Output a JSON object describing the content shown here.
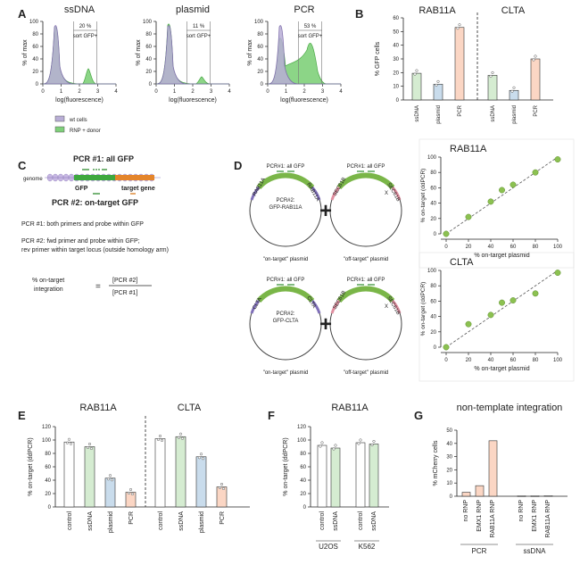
{
  "colors": {
    "wt": "#b9aed6",
    "rnp": "#7fd07a",
    "ssdna": "#d5ecd1",
    "plasmid": "#c9dcec",
    "pcr": "#fbd6c4",
    "point": "#8cc151",
    "primer": "#3a9a3a",
    "gene": "#e4852b",
    "gfp_green": "#2e8b2e",
    "pcr2_orange": "#d97a1c"
  },
  "panelA": {
    "letter": "A",
    "legend": {
      "wt": "wt cells",
      "rnp": "RNP + donor"
    },
    "ylabel": "% of max",
    "xlabel": "log(fluorescence)",
    "yticks": [
      "0",
      "20",
      "40",
      "60",
      "80",
      "100"
    ],
    "xticks": [
      "0",
      "1",
      "2",
      "3",
      "4"
    ],
    "gate_label": "sort GFP+",
    "plots": [
      {
        "title": "ssDNA",
        "pct": "20 %"
      },
      {
        "title": "plasmid",
        "pct": "11 %"
      },
      {
        "title": "PCR",
        "pct": "53 %"
      }
    ]
  },
  "panelB": {
    "letter": "B",
    "groups": [
      "RAB11A",
      "CLTA"
    ],
    "ylabel": "% GFP cells",
    "yticks": [
      "0",
      "10",
      "20",
      "30",
      "40",
      "50",
      "60"
    ],
    "categories": [
      "ssDNA",
      "plasmid",
      "PCR"
    ]
  },
  "panelC": {
    "letter": "C",
    "genome": "genome",
    "pcr1": "PCR #1: all GFP",
    "pcr2": "PCR #2: on-target GFP",
    "gfp": "GFP",
    "target_gene": "target gene",
    "line1": "PCR #1: both primers and probe within GFP",
    "line2a": "PCR #2: fwd primer and probe within GFP;",
    "line2b": "rev primer within target locus (outside homology arm)",
    "eq_left1": "% on-target",
    "eq_left2": "integration",
    "eq_eq": "=",
    "eq_num": "[PCR #2]",
    "eq_den": "[PCR #1]"
  },
  "panelD": {
    "letter": "D",
    "pcr1_label": "PCR#1: all GFP",
    "on_target": "\"on-target\" plasmid",
    "off_target": "\"off-target\" plasmid",
    "plus": "+",
    "x_mark": "X",
    "pcr2_line1": "PCR#2:",
    "rows": [
      {
        "arm": "RAB11A",
        "pcr2_line2": "GFP-RAB11A",
        "off_arm": "SEC61B"
      },
      {
        "arm": "CLTA",
        "pcr2_line2": "GFP-CLTA",
        "off_arm": "SEC61B"
      }
    ],
    "ylabel": "% on-target (ddPCR)",
    "xlabel": "% on-target plasmid",
    "yticks": [
      "0",
      "20",
      "40",
      "60",
      "80",
      "100"
    ],
    "xticks": [
      "0",
      "20",
      "40",
      "60",
      "80",
      "100"
    ]
  },
  "panelE": {
    "letter": "E",
    "groups": [
      "RAB11A",
      "CLTA"
    ],
    "ylabel": "% on-target (ddPCR)",
    "yticks": [
      "0",
      "20",
      "40",
      "60",
      "80",
      "100",
      "120"
    ],
    "categories": [
      "control",
      "ssDNA",
      "plasmid",
      "PCR"
    ]
  },
  "panelF": {
    "letter": "F",
    "title": "RAB11A",
    "ylabel": "% on-target (ddPCR)",
    "yticks": [
      "0",
      "20",
      "40",
      "60",
      "80",
      "100",
      "120"
    ],
    "categories": [
      "control",
      "ssDNA"
    ],
    "groups": [
      "U2OS",
      "K562"
    ]
  },
  "panelG": {
    "letter": "G",
    "title": "non-template integration",
    "ylabel": "% mCherry cells",
    "yticks": [
      "0",
      "10",
      "20",
      "30",
      "40",
      "50"
    ],
    "categories": [
      "no RNP",
      "EMX1 RNP",
      "RAB11A RNP"
    ],
    "groups": [
      "PCR",
      "ssDNA"
    ]
  },
  "chart_data": [
    {
      "panel": "B",
      "type": "bar",
      "ylabel": "% GFP cells",
      "ylim": [
        0,
        60
      ],
      "categories": [
        "ssDNA",
        "plasmid",
        "PCR"
      ],
      "series": [
        {
          "name": "RAB11A",
          "values": [
            19.5,
            11.5,
            53
          ]
        },
        {
          "name": "CLTA",
          "values": [
            18,
            7,
            30
          ]
        }
      ]
    },
    {
      "panel": "D",
      "type": "scatter",
      "title": "RAB11A",
      "xlabel": "% on-target plasmid",
      "ylabel": "% on-target (ddPCR)",
      "xlim": [
        0,
        100
      ],
      "ylim": [
        0,
        100
      ],
      "x": [
        0,
        20,
        40,
        50,
        60,
        80,
        100
      ],
      "y": [
        0,
        22,
        42,
        57,
        64,
        80,
        97
      ]
    },
    {
      "panel": "D",
      "type": "scatter",
      "title": "CLTA",
      "xlabel": "% on-target plasmid",
      "ylabel": "% on-target (ddPCR)",
      "xlim": [
        0,
        100
      ],
      "ylim": [
        0,
        100
      ],
      "x": [
        0,
        20,
        40,
        50,
        60,
        80,
        100
      ],
      "y": [
        0,
        30,
        42,
        58,
        61,
        70,
        97
      ]
    },
    {
      "panel": "E",
      "type": "bar",
      "ylabel": "% on-target (ddPCR)",
      "ylim": [
        0,
        120
      ],
      "categories": [
        "control",
        "ssDNA",
        "plasmid",
        "PCR"
      ],
      "series": [
        {
          "name": "RAB11A",
          "values": [
            97,
            90,
            43,
            22
          ]
        },
        {
          "name": "CLTA",
          "values": [
            102,
            105,
            75,
            30
          ]
        }
      ]
    },
    {
      "panel": "F",
      "type": "bar",
      "title": "RAB11A",
      "ylabel": "% on-target (ddPCR)",
      "ylim": [
        0,
        120
      ],
      "categories": [
        "control",
        "ssDNA"
      ],
      "series": [
        {
          "name": "U2OS",
          "values": [
            92,
            88
          ]
        },
        {
          "name": "K562",
          "values": [
            96,
            94
          ]
        }
      ]
    },
    {
      "panel": "G",
      "type": "bar",
      "title": "non-template integration",
      "ylabel": "% mCherry cells",
      "ylim": [
        0,
        50
      ],
      "categories": [
        "no RNP",
        "EMX1 RNP",
        "RAB11A RNP"
      ],
      "series": [
        {
          "name": "PCR",
          "values": [
            3,
            8,
            42
          ]
        },
        {
          "name": "ssDNA",
          "values": [
            0.3,
            0.3,
            0.4
          ]
        }
      ]
    }
  ]
}
